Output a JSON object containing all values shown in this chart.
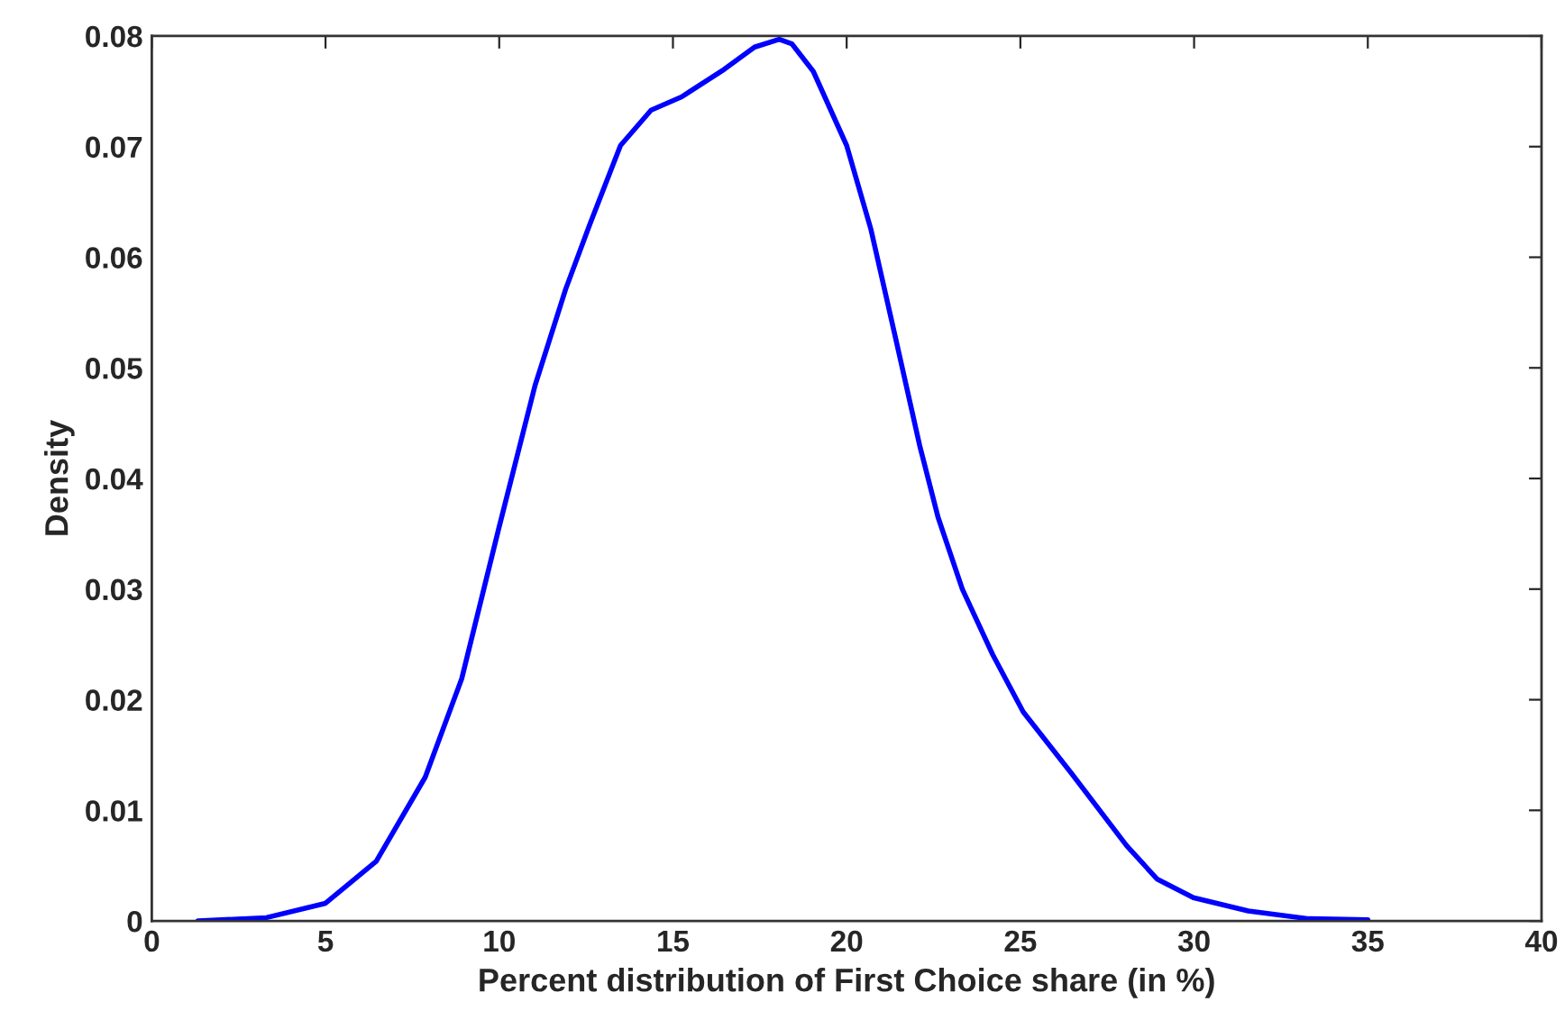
{
  "chart_data": {
    "type": "line",
    "xlabel": "Percent distribution of First Choice share (in %)",
    "ylabel": "Density",
    "x": [
      1.33,
      3.3,
      5.0,
      6.46,
      7.87,
      8.92,
      9.98,
      11.03,
      11.91,
      12.61,
      13.49,
      14.37,
      15.25,
      16.48,
      17.35,
      18.06,
      18.42,
      19.04,
      20.0,
      20.7,
      21.4,
      22.1,
      22.63,
      23.33,
      24.2,
      25.08,
      26.48,
      28.06,
      28.93,
      29.98,
      31.56,
      33.3,
      35.0
    ],
    "series": [
      {
        "color": "#0000ff",
        "values": [
          0.0,
          0.0003,
          0.0016,
          0.0054,
          0.013,
          0.0219,
          0.0354,
          0.0484,
          0.0571,
          0.063,
          0.0701,
          0.0733,
          0.0745,
          0.077,
          0.079,
          0.0797,
          0.0793,
          0.0768,
          0.0701,
          0.0625,
          0.0528,
          0.043,
          0.0365,
          0.03,
          0.0241,
          0.0189,
          0.0133,
          0.0068,
          0.0038,
          0.0021,
          0.0009,
          0.0002,
          0.0001
        ]
      }
    ],
    "xlim": [
      0,
      40
    ],
    "xticks": [
      0,
      5,
      10,
      15,
      20,
      25,
      30,
      35,
      40
    ],
    "ylim": [
      0,
      0.08
    ],
    "yticks": [
      0,
      0.01,
      0.02,
      0.03,
      0.04,
      0.05,
      0.06,
      0.07,
      0.08
    ],
    "grid": false,
    "marker": "none",
    "line_style": "solid"
  }
}
